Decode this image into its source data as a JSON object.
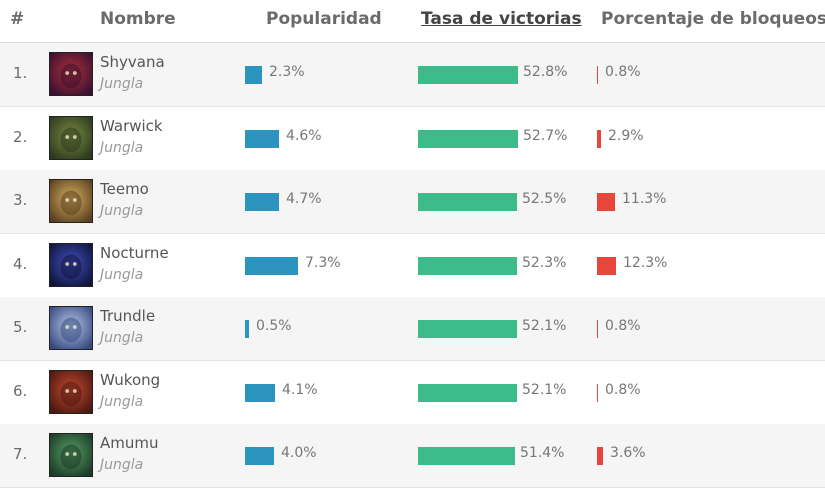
{
  "header": {
    "rank": "#",
    "name": "Nombre",
    "popularity": "Popularidad",
    "winrate": "Tasa de victorias",
    "banrate": "Porcentaje de bloqueos"
  },
  "rows": [
    {
      "rank": "1.",
      "name": "Shyvana",
      "role": "Jungla",
      "popularity": "2.3%",
      "winrate": "52.8%",
      "banrate": "0.8%",
      "pop_value": 2.3,
      "win_value": 52.8,
      "ban_value": 0.8,
      "avatar_icon": "shyvana-portrait",
      "avatar_colors": [
        "#3a1030",
        "#b0303a"
      ]
    },
    {
      "rank": "2.",
      "name": "Warwick",
      "role": "Jungla",
      "popularity": "4.6%",
      "winrate": "52.7%",
      "banrate": "2.9%",
      "pop_value": 4.6,
      "win_value": 52.7,
      "ban_value": 2.9,
      "avatar_icon": "warwick-portrait",
      "avatar_colors": [
        "#2c3a1e",
        "#7a8a40"
      ]
    },
    {
      "rank": "3.",
      "name": "Teemo",
      "role": "Jungla",
      "popularity": "4.7%",
      "winrate": "52.5%",
      "banrate": "11.3%",
      "pop_value": 4.7,
      "win_value": 52.5,
      "ban_value": 11.3,
      "avatar_icon": "teemo-portrait",
      "avatar_colors": [
        "#5a4020",
        "#d8b060"
      ]
    },
    {
      "rank": "4.",
      "name": "Nocturne",
      "role": "Jungla",
      "popularity": "7.3%",
      "winrate": "52.3%",
      "banrate": "12.3%",
      "pop_value": 7.3,
      "win_value": 52.3,
      "ban_value": 12.3,
      "avatar_icon": "nocturne-portrait",
      "avatar_colors": [
        "#10143a",
        "#4050c0"
      ]
    },
    {
      "rank": "5.",
      "name": "Trundle",
      "role": "Jungla",
      "popularity": "0.5%",
      "winrate": "52.1%",
      "banrate": "0.8%",
      "pop_value": 0.5,
      "win_value": 52.1,
      "ban_value": 0.8,
      "avatar_icon": "trundle-portrait",
      "avatar_colors": [
        "#3a4a80",
        "#b0c8e8"
      ]
    },
    {
      "rank": "6.",
      "name": "Wukong",
      "role": "Jungla",
      "popularity": "4.1%",
      "winrate": "52.1%",
      "banrate": "0.8%",
      "pop_value": 4.1,
      "win_value": 52.1,
      "ban_value": 0.8,
      "avatar_icon": "wukong-portrait",
      "avatar_colors": [
        "#4a1810",
        "#c84a30"
      ]
    },
    {
      "rank": "7.",
      "name": "Amumu",
      "role": "Jungla",
      "popularity": "4.0%",
      "winrate": "51.4%",
      "banrate": "3.6%",
      "pop_value": 4.0,
      "win_value": 51.4,
      "ban_value": 3.6,
      "avatar_icon": "amumu-portrait",
      "avatar_colors": [
        "#1a3a2a",
        "#58a060"
      ]
    }
  ],
  "colors": {
    "popularity_bar": "#2b95c0",
    "winrate_bar": "#3cbc8a",
    "banrate_bar": "#e8453c"
  }
}
